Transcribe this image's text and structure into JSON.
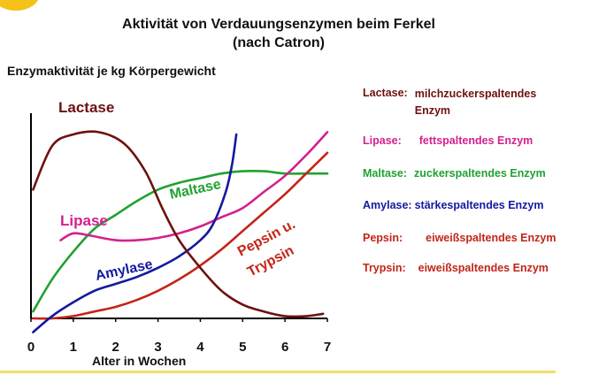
{
  "chart_data": {
    "type": "line",
    "title": "Aktivität von Verdauungsenzymen beim Ferkel",
    "subtitle": "(nach Catron)",
    "ylabel": "Enzymaktivität je kg Körpergewicht",
    "xlabel": "Alter in Wochen",
    "xlim": [
      0,
      7
    ],
    "ylim": [
      0,
      100
    ],
    "x_ticks": [
      "0",
      "1",
      "2",
      "3",
      "4",
      "5",
      "6",
      "7"
    ],
    "grid": false,
    "series": [
      {
        "name": "Lactase",
        "label": "Lactase",
        "color": "#6e1010",
        "points": [
          [
            0.05,
            56
          ],
          [
            0.5,
            75
          ],
          [
            1.0,
            80
          ],
          [
            1.6,
            81
          ],
          [
            2.2,
            76
          ],
          [
            2.7,
            64
          ],
          [
            3.1,
            48
          ],
          [
            3.5,
            34
          ],
          [
            4.0,
            22
          ],
          [
            4.5,
            12
          ],
          [
            5.0,
            6
          ],
          [
            5.5,
            3
          ],
          [
            6.0,
            1
          ],
          [
            6.5,
            1
          ],
          [
            6.9,
            2
          ]
        ]
      },
      {
        "name": "Lipase",
        "label": "Lipase",
        "color": "#d4208e",
        "points": [
          [
            0.7,
            34
          ],
          [
            1.0,
            37
          ],
          [
            1.4,
            36
          ],
          [
            2.0,
            34
          ],
          [
            2.5,
            34
          ],
          [
            3.0,
            35
          ],
          [
            3.5,
            37
          ],
          [
            4.0,
            40
          ],
          [
            4.5,
            44
          ],
          [
            5.0,
            48
          ],
          [
            5.5,
            55
          ],
          [
            6.0,
            62
          ],
          [
            6.5,
            71
          ],
          [
            7.0,
            81
          ]
        ]
      },
      {
        "name": "Maltase",
        "label": "Maltase",
        "color": "#1fa231",
        "points": [
          [
            0.05,
            3
          ],
          [
            0.5,
            17
          ],
          [
            1.0,
            29
          ],
          [
            1.5,
            39
          ],
          [
            2.0,
            45
          ],
          [
            2.5,
            51
          ],
          [
            3.0,
            56
          ],
          [
            3.5,
            59
          ],
          [
            4.0,
            61
          ],
          [
            4.5,
            63
          ],
          [
            5.0,
            64
          ],
          [
            5.5,
            64
          ],
          [
            6.0,
            63
          ],
          [
            6.5,
            63
          ],
          [
            7.0,
            63
          ]
        ]
      },
      {
        "name": "Amylase",
        "label": "Amylase",
        "color": "#14199e",
        "points": [
          [
            0.05,
            -6
          ],
          [
            0.5,
            1
          ],
          [
            1.0,
            7
          ],
          [
            1.5,
            12
          ],
          [
            2.0,
            15
          ],
          [
            2.5,
            18
          ],
          [
            3.0,
            22
          ],
          [
            3.5,
            27
          ],
          [
            4.0,
            34
          ],
          [
            4.3,
            41
          ],
          [
            4.6,
            55
          ],
          [
            4.75,
            67
          ],
          [
            4.85,
            80
          ]
        ]
      },
      {
        "name": "Pepsin",
        "label": "Pepsin u.",
        "color": "#c42418",
        "points": [
          [
            0.05,
            0
          ],
          [
            0.5,
            0
          ],
          [
            1.0,
            1
          ],
          [
            1.5,
            3
          ],
          [
            2.0,
            5
          ],
          [
            2.5,
            8
          ],
          [
            3.0,
            12
          ],
          [
            3.5,
            17
          ],
          [
            4.0,
            23
          ],
          [
            4.5,
            30
          ],
          [
            5.0,
            38
          ],
          [
            5.5,
            46
          ],
          [
            6.0,
            54
          ],
          [
            6.5,
            63
          ],
          [
            7.0,
            72
          ]
        ]
      },
      {
        "name": "Trypsin",
        "label": "Trypsin",
        "color": "#c42418",
        "points": []
      }
    ],
    "legend_position": "right"
  },
  "legend": [
    {
      "name": "Lactase:",
      "desc": "milchzuckerspaltendes Enzym",
      "color": "#6e1010"
    },
    {
      "name": "Lipase:",
      "desc": "fettspaltendes Enzym",
      "color": "#d4208e"
    },
    {
      "name": "Maltase:",
      "desc": "zuckerspaltendes Enzym",
      "color": "#1fa231"
    },
    {
      "name": "Amylase:",
      "desc": "stärkespaltendes Enzym",
      "color": "#14199e"
    },
    {
      "name": "Pepsin:",
      "desc": "eiweißspaltendes Enzym",
      "color": "#c42418"
    },
    {
      "name": "Trypsin:",
      "desc": "eiweißspaltendes Enzym",
      "color": "#c42418"
    }
  ],
  "colors": {
    "axis": "#000000",
    "accent": "#f5c21a"
  }
}
